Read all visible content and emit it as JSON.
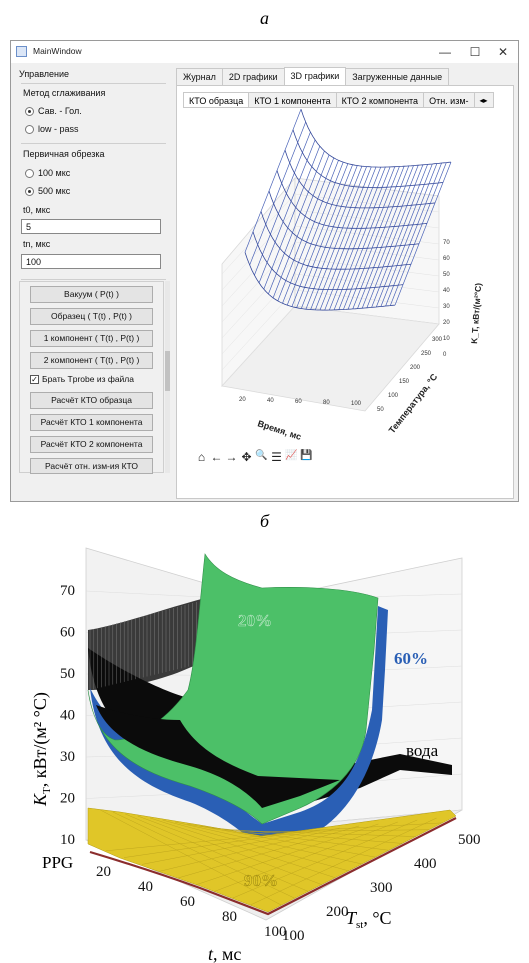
{
  "captions": {
    "a": "а",
    "b": "б"
  },
  "window": {
    "title": "MainWindow",
    "controls": {
      "minimize": "—",
      "maximize": "☐",
      "close": "✕"
    }
  },
  "left_panel": {
    "header": "Управление",
    "smoothing": {
      "label": "Метод сглаживания",
      "options": [
        {
          "label": "Сав. - Гол.",
          "selected": true
        },
        {
          "label": "low - pass",
          "selected": false
        }
      ]
    },
    "cut": {
      "label": "Первичная обрезка",
      "options": [
        {
          "label": "100 мкс",
          "selected": false
        },
        {
          "label": "500 мкс",
          "selected": true
        }
      ]
    },
    "t0": {
      "label": "t0, мкс",
      "value": "5"
    },
    "tn": {
      "label": "tn, мкс",
      "value": "100"
    },
    "buttons": {
      "vacuum": "Вакуум ( P(t) )",
      "sample": "Образец ( T(t) , P(t) )",
      "comp1": "1 компонент ( T(t) , P(t) )",
      "comp2": "2 компонент ( T(t) , P(t) )",
      "checkbox": "Брать Tprobe из файла",
      "calc_sample": "Расчёт КТО образца",
      "calc1": "Расчёт КТО 1 компонента",
      "calc2": "Расчёт КТО 2 компонента",
      "calc_rel": "Расчёт отн. изм-ия КТО"
    }
  },
  "tabs": [
    "Журнал",
    "2D графики",
    "3D графики",
    "Загруженные данные"
  ],
  "selected_tab": "3D графики",
  "subtabs": [
    "КТО образца",
    "КТО 1 компонента",
    "КТО 2 компонента",
    "Отн. изм-"
  ],
  "toolbar_icons": [
    "home-icon",
    "back-arrow-icon",
    "forward-arrow-icon",
    "pan-icon",
    "zoom-icon",
    "configure-icon",
    "edit-curve-icon",
    "save-icon"
  ],
  "toolbar_glyphs": [
    "⌂",
    "←",
    "→",
    "✥",
    "🔍",
    "☰",
    "📈",
    "💾"
  ],
  "plot_small": {
    "xlabel": "Время, мс",
    "ylabel": "Температура, °C",
    "zlabel": "K_T, кВт/(м²°C)",
    "x_ticks": [
      "20",
      "40",
      "60",
      "80",
      "100"
    ],
    "y_ticks": [
      "300",
      "250",
      "200",
      "150",
      "100",
      "50"
    ],
    "z_ticks": [
      "0",
      "10",
      "20",
      "30",
      "40",
      "50",
      "60",
      "70"
    ]
  },
  "plot_big": {
    "zlabel_main": "K",
    "zlabel_sub": "T",
    "zlabel_rest": ", кВт/(м² °C)",
    "xlabel_var": "t",
    "xlabel_rest": ", мс",
    "ylabel_var": "T",
    "ylabel_sub": "st",
    "ylabel_rest": ", °C",
    "z_ticks": [
      "10",
      "20",
      "30",
      "40",
      "50",
      "60",
      "70"
    ],
    "x_ticks": [
      "20",
      "40",
      "60",
      "80",
      "100"
    ],
    "y_ticks": [
      "100",
      "200",
      "300",
      "400",
      "500"
    ],
    "labels": {
      "pct20": "20%",
      "pct60": "60%",
      "water": "вода",
      "ppg": "PPG",
      "pct90": "90%"
    },
    "colors": {
      "pct20": "#4cc068",
      "pct60": "#2a5fb5",
      "water": "#111111",
      "pct90": "#e0c628",
      "ppg": "#8b2d2d"
    }
  }
}
